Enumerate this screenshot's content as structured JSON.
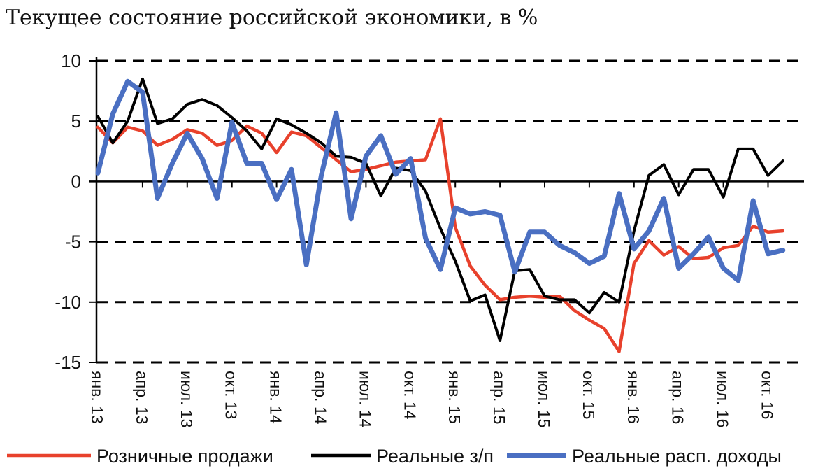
{
  "chart_data": {
    "type": "line",
    "title": "Текущее состояние российской экономики, в %",
    "xlabel": "",
    "ylabel": "",
    "ylim": [
      -15,
      10
    ],
    "yticks": [
      "10",
      "5",
      "0",
      "-5",
      "-10",
      "-15"
    ],
    "ytick_values": [
      10,
      5,
      0,
      -5,
      -10,
      -15
    ],
    "grid": "dashed horizontal",
    "legend_position": "bottom",
    "x": [
      "янв. 13",
      "фев. 13",
      "мар. 13",
      "апр. 13",
      "май 13",
      "июн. 13",
      "июл. 13",
      "авг. 13",
      "сен. 13",
      "окт. 13",
      "ноя. 13",
      "дек. 13",
      "янв. 14",
      "фев. 14",
      "мар. 14",
      "апр. 14",
      "май 14",
      "июн. 14",
      "июл. 14",
      "авг. 14",
      "сен. 14",
      "окт. 14",
      "ноя. 14",
      "дек. 14",
      "янв. 15",
      "фев. 15",
      "мар. 15",
      "апр. 15",
      "май 15",
      "июн. 15",
      "июл. 15",
      "авг. 15",
      "сен. 15",
      "окт. 15",
      "ноя. 15",
      "дек. 15",
      "янв. 16",
      "фев. 16",
      "мар. 16",
      "апр. 16",
      "май 16",
      "июн. 16",
      "июл. 16",
      "авг. 16",
      "сен. 16",
      "окт. 16",
      "ноя. 16"
    ],
    "xtick_labels": [
      "янв. 13",
      "апр. 13",
      "июл. 13",
      "окт. 13",
      "янв. 14",
      "апр. 14",
      "июл. 14",
      "окт. 14",
      "янв. 15",
      "апр. 15",
      "июл. 15",
      "окт. 15",
      "янв. 16",
      "апр. 16",
      "июл. 16",
      "окт. 16"
    ],
    "series": [
      {
        "name": "Розничные продажи",
        "color": "#e8412c",
        "values": [
          4.5,
          3.2,
          4.5,
          4.2,
          3.0,
          3.5,
          4.3,
          4.0,
          3.0,
          3.4,
          4.6,
          4.0,
          2.4,
          4.1,
          3.8,
          2.8,
          1.8,
          0.8,
          1.0,
          1.3,
          1.6,
          1.7,
          1.8,
          5.2,
          -3.8,
          -7.0,
          -8.6,
          -9.8,
          -9.6,
          -9.5,
          -9.6,
          -9.5,
          -10.7,
          -11.5,
          -12.2,
          -14.1,
          -6.8,
          -4.9,
          -6.1,
          -5.4,
          -6.4,
          -6.3,
          -5.5,
          -5.3,
          -3.7,
          -4.2,
          -4.1
        ]
      },
      {
        "name": "Реальные з/п",
        "color": "#000000",
        "values": [
          5.4,
          3.2,
          5.0,
          8.5,
          4.8,
          5.2,
          6.4,
          6.8,
          6.3,
          5.3,
          4.2,
          2.7,
          5.2,
          4.7,
          4.0,
          3.2,
          2.1,
          2.0,
          1.5,
          -1.2,
          1.1,
          0.9,
          -0.8,
          -3.9,
          -6.6,
          -9.9,
          -9.4,
          -13.2,
          -7.4,
          -7.3,
          -9.5,
          -9.8,
          -9.8,
          -10.9,
          -9.2,
          -10.0,
          -4.1,
          0.5,
          1.4,
          -1.1,
          1.0,
          1.0,
          -1.3,
          2.7,
          2.7,
          0.5,
          1.7
        ]
      },
      {
        "name": "Реальные расп. доходы",
        "color": "#4a6fc2",
        "values": [
          0.7,
          5.6,
          8.3,
          7.4,
          -1.4,
          1.5,
          4.0,
          1.9,
          -1.4,
          4.9,
          1.5,
          1.5,
          -1.5,
          1.0,
          -6.9,
          0.5,
          5.7,
          -3.1,
          2.1,
          3.8,
          0.6,
          1.9,
          -4.7,
          -7.3,
          -2.2,
          -2.7,
          -2.5,
          -2.8,
          -7.5,
          -4.2,
          -4.2,
          -5.3,
          -5.9,
          -6.8,
          -6.2,
          -1.0,
          -5.6,
          -4.1,
          -1.4,
          -7.2,
          -6.0,
          -4.6,
          -7.2,
          -8.2,
          -1.6,
          -6.0,
          -5.7
        ]
      }
    ]
  }
}
